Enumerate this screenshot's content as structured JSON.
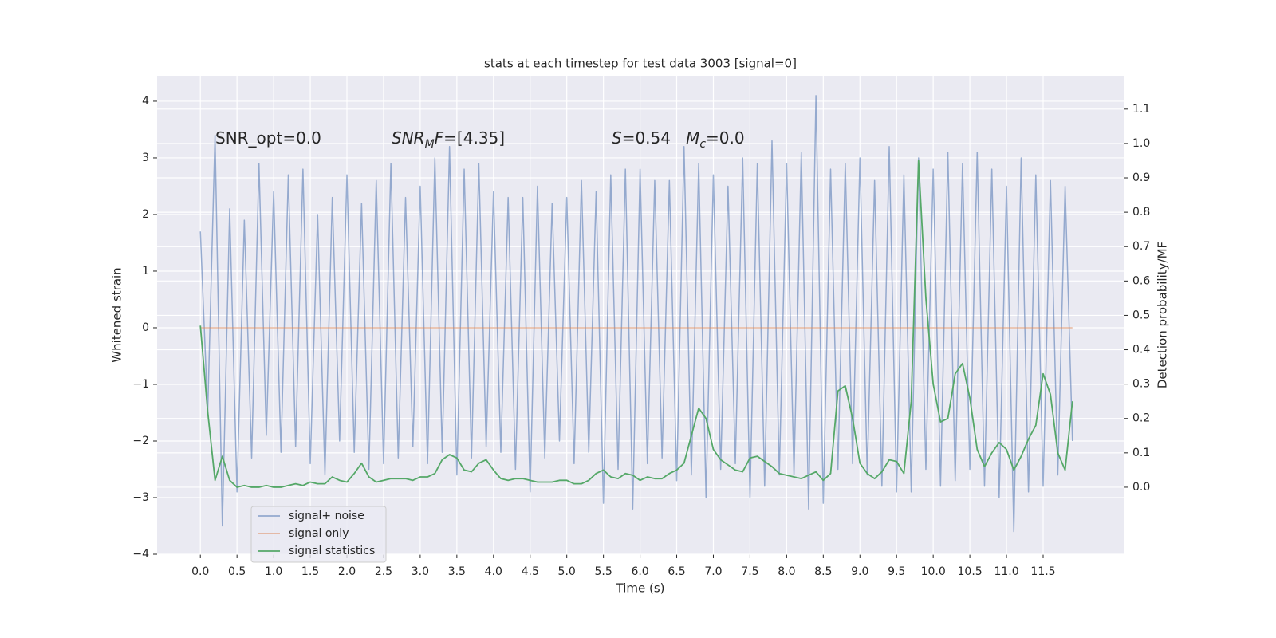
{
  "chart_data": {
    "type": "line",
    "title": "stats at each timestep for test data 3003 [signal=0]",
    "x_label": "Time (s)",
    "y_label": "Whitened strain",
    "y2_label": "Detection probability/MF",
    "annotations": [
      [
        {
          "text": "SNR_opt=0.0"
        }
      ],
      [
        {
          "text": "SNR",
          "italic": true
        },
        {
          "text": "M",
          "italic": true,
          "sub": true
        },
        {
          "text": "F",
          "italic": true
        },
        {
          "text": "=[4.35]"
        }
      ],
      [
        {
          "text": "S",
          "italic": true
        },
        {
          "text": "=0.54   "
        },
        {
          "text": "M",
          "italic": true
        },
        {
          "text": "c",
          "italic": true,
          "sub": true
        },
        {
          "text": "=0.0"
        }
      ]
    ],
    "x": [
      0,
      0.1,
      0.2,
      0.3,
      0.4,
      0.5,
      0.6,
      0.7,
      0.8,
      0.9,
      1,
      1.1,
      1.2,
      1.3,
      1.4,
      1.5,
      1.6,
      1.7,
      1.8,
      1.9,
      2,
      2.1,
      2.2,
      2.3,
      2.4,
      2.5,
      2.6,
      2.7,
      2.8,
      2.9,
      3,
      3.1,
      3.2,
      3.3,
      3.4,
      3.5,
      3.6,
      3.7,
      3.8,
      3.9,
      4,
      4.1,
      4.2,
      4.3,
      4.4,
      4.5,
      4.6,
      4.7,
      4.8,
      4.9,
      5,
      5.1,
      5.2,
      5.3,
      5.4,
      5.5,
      5.6,
      5.7,
      5.8,
      5.9,
      6,
      6.1,
      6.2,
      6.3,
      6.4,
      6.5,
      6.6,
      6.7,
      6.8,
      6.9,
      7,
      7.1,
      7.2,
      7.3,
      7.4,
      7.5,
      7.6,
      7.7,
      7.8,
      7.9,
      8,
      8.1,
      8.2,
      8.3,
      8.4,
      8.5,
      8.6,
      8.7,
      8.8,
      8.9,
      9,
      9.1,
      9.2,
      9.3,
      9.4,
      9.5,
      9.6,
      9.7,
      9.8,
      9.9,
      10,
      10.1,
      10.2,
      10.3,
      10.4,
      10.5,
      10.6,
      10.7,
      10.8,
      10.9,
      11,
      11.1,
      11.2,
      11.3,
      11.4,
      11.5,
      11.6,
      11.7,
      11.8,
      11.9
    ],
    "series": [
      {
        "name": "signal+ noise",
        "color": "#4c72b0",
        "alpha": 0.55,
        "axis": "y",
        "values": [
          1.7,
          -1.5,
          3.4,
          -3.5,
          2.1,
          -2.9,
          1.9,
          -2.3,
          2.9,
          -1.9,
          2.4,
          -2.2,
          2.7,
          -2.1,
          2.8,
          -2.4,
          2.0,
          -2.6,
          2.3,
          -2.0,
          2.7,
          -2.2,
          2.2,
          -2.5,
          2.6,
          -2.4,
          2.9,
          -2.3,
          2.3,
          -2.1,
          2.5,
          -2.4,
          3.0,
          -2.2,
          3.2,
          -2.6,
          2.8,
          -2.3,
          2.9,
          -2.1,
          2.4,
          -2.2,
          2.3,
          -2.5,
          2.3,
          -2.9,
          2.5,
          -2.3,
          2.2,
          -2.0,
          2.3,
          -2.4,
          2.6,
          -2.2,
          2.4,
          -3.1,
          2.7,
          -2.5,
          2.8,
          -3.2,
          2.8,
          -2.4,
          2.6,
          -2.3,
          2.6,
          -2.7,
          3.2,
          -2.6,
          2.9,
          -3.0,
          2.7,
          -2.5,
          2.5,
          -2.4,
          3.0,
          -3.0,
          2.9,
          -2.8,
          3.3,
          -2.6,
          2.9,
          -2.6,
          3.1,
          -3.2,
          4.1,
          -3.1,
          2.8,
          -2.5,
          2.9,
          -2.4,
          3.0,
          -2.6,
          2.6,
          -2.8,
          3.2,
          -2.9,
          2.7,
          -2.9,
          3.0,
          -2.5,
          2.8,
          -2.8,
          3.1,
          -2.7,
          2.9,
          -2.5,
          3.1,
          -2.8,
          2.8,
          -3.0,
          2.5,
          -3.6,
          3.0,
          -2.9,
          2.7,
          -2.8,
          2.6,
          -2.6,
          2.5,
          -2.0
        ]
      },
      {
        "name": "signal only",
        "color": "#dd8452",
        "alpha": 0.55,
        "axis": "y",
        "values": [
          0,
          0,
          0,
          0,
          0,
          0,
          0,
          0,
          0,
          0,
          0,
          0,
          0,
          0,
          0,
          0,
          0,
          0,
          0,
          0,
          0,
          0,
          0,
          0,
          0,
          0,
          0,
          0,
          0,
          0,
          0,
          0,
          0,
          0,
          0,
          0,
          0,
          0,
          0,
          0,
          0,
          0,
          0,
          0,
          0,
          0,
          0,
          0,
          0,
          0,
          0,
          0,
          0,
          0,
          0,
          0,
          0,
          0,
          0,
          0,
          0,
          0,
          0,
          0,
          0,
          0,
          0,
          0,
          0,
          0,
          0,
          0,
          0,
          0,
          0,
          0,
          0,
          0,
          0,
          0,
          0,
          0,
          0,
          0,
          0,
          0,
          0,
          0,
          0,
          0,
          0,
          0,
          0,
          0,
          0,
          0,
          0,
          0,
          0,
          0,
          0,
          0,
          0,
          0,
          0,
          0,
          0,
          0,
          0,
          0,
          0,
          0,
          0,
          0,
          0,
          0,
          0,
          0,
          0,
          0
        ]
      },
      {
        "name": "signal statistics",
        "color": "#55a868",
        "alpha": 1,
        "axis": "y2",
        "values": [
          0.47,
          0.22,
          0.02,
          0.09,
          0.02,
          0.0,
          0.005,
          0.0,
          0.0,
          0.005,
          0.0,
          0.0,
          0.005,
          0.01,
          0.005,
          0.015,
          0.01,
          0.01,
          0.03,
          0.02,
          0.015,
          0.04,
          0.07,
          0.03,
          0.015,
          0.02,
          0.025,
          0.025,
          0.025,
          0.02,
          0.03,
          0.03,
          0.04,
          0.08,
          0.095,
          0.085,
          0.05,
          0.045,
          0.07,
          0.08,
          0.05,
          0.025,
          0.02,
          0.025,
          0.025,
          0.02,
          0.015,
          0.015,
          0.015,
          0.02,
          0.02,
          0.01,
          0.01,
          0.02,
          0.04,
          0.05,
          0.03,
          0.025,
          0.04,
          0.035,
          0.02,
          0.03,
          0.025,
          0.025,
          0.04,
          0.05,
          0.07,
          0.15,
          0.23,
          0.2,
          0.11,
          0.08,
          0.065,
          0.05,
          0.045,
          0.085,
          0.09,
          0.075,
          0.06,
          0.04,
          0.035,
          0.03,
          0.025,
          0.035,
          0.045,
          0.02,
          0.04,
          0.28,
          0.295,
          0.2,
          0.07,
          0.04,
          0.025,
          0.045,
          0.08,
          0.075,
          0.04,
          0.25,
          0.95,
          0.55,
          0.3,
          0.19,
          0.2,
          0.33,
          0.36,
          0.26,
          0.11,
          0.06,
          0.1,
          0.13,
          0.11,
          0.05,
          0.09,
          0.14,
          0.18,
          0.33,
          0.27,
          0.1,
          0.05,
          0.25
        ]
      }
    ],
    "xlim": [
      -0.59,
      12.61
    ],
    "xticks": [
      {
        "value": 0,
        "label": "0.0"
      },
      0.5,
      {
        "value": 1,
        "label": "1.0"
      },
      1.5,
      {
        "value": 2,
        "label": "2.0"
      },
      2.5,
      {
        "value": 3,
        "label": "3.0"
      },
      3.5,
      {
        "value": 4,
        "label": "4.0"
      },
      4.5,
      {
        "value": 5,
        "label": "5.0"
      },
      5.5,
      {
        "value": 6,
        "label": "6.0"
      },
      6.5,
      {
        "value": 7,
        "label": "7.0"
      },
      7.5,
      {
        "value": 8,
        "label": "8.0"
      },
      8.5,
      {
        "value": 9,
        "label": "9.0"
      },
      9.5,
      {
        "value": 10,
        "label": "10.0"
      },
      10.5,
      {
        "value": 11,
        "label": "11.0"
      },
      11.5
    ],
    "ylim": [
      -4,
      4.45
    ],
    "yticks": [
      {
        "value": -4,
        "label": "−4"
      },
      {
        "value": -3,
        "label": "−3"
      },
      {
        "value": -2,
        "label": "−2"
      },
      {
        "value": -1,
        "label": "−1"
      },
      0,
      1,
      2,
      3,
      4
    ],
    "y2lim": [
      -0.195,
      1.197
    ],
    "y2ticks": [
      {
        "value": 0,
        "label": "0.0"
      },
      0.1,
      0.2,
      0.3,
      0.4,
      0.5,
      0.6,
      0.7,
      0.8,
      0.9,
      {
        "value": 1,
        "label": "1.0"
      },
      1.1
    ],
    "grid": true,
    "legend": "lower left",
    "background": "#eaeaf2"
  }
}
